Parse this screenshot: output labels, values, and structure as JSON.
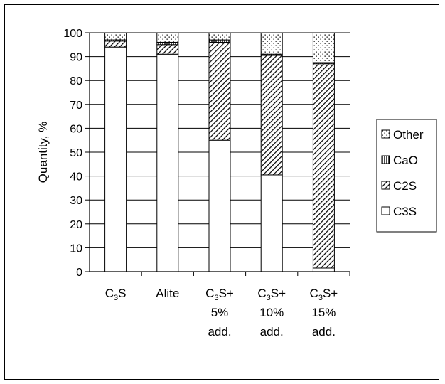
{
  "chart_data": {
    "type": "bar",
    "stacked": true,
    "categories": [
      [
        "C₃S"
      ],
      [
        "Alite"
      ],
      [
        "C₃S+",
        "5%",
        "add."
      ],
      [
        "C₃S+",
        "10%",
        "add."
      ],
      [
        "C₃S+",
        "15%",
        "add."
      ]
    ],
    "series": [
      {
        "name": "C3S",
        "values": [
          94,
          91,
          55,
          40.5,
          1.5
        ],
        "pattern": "white"
      },
      {
        "name": "C2S",
        "values": [
          2.5,
          4,
          41,
          50,
          85.5
        ],
        "pattern": "diagonal"
      },
      {
        "name": "CaO",
        "values": [
          0.5,
          1,
          1,
          0.5,
          0.5
        ],
        "pattern": "vertical"
      },
      {
        "name": "Other",
        "values": [
          3,
          4,
          3,
          9,
          12.5
        ],
        "pattern": "dots"
      }
    ],
    "xlabel": "",
    "ylabel": "Quantity, %",
    "ylim": [
      0,
      100
    ],
    "yticks": [
      0,
      10,
      20,
      30,
      40,
      50,
      60,
      70,
      80,
      90,
      100
    ],
    "grid": true,
    "legend": {
      "placement": "right",
      "order": [
        "Other",
        "CaO",
        "C2S",
        "C3S"
      ]
    },
    "colors": {
      "line": "#000000",
      "fill": "#ffffff"
    }
  }
}
